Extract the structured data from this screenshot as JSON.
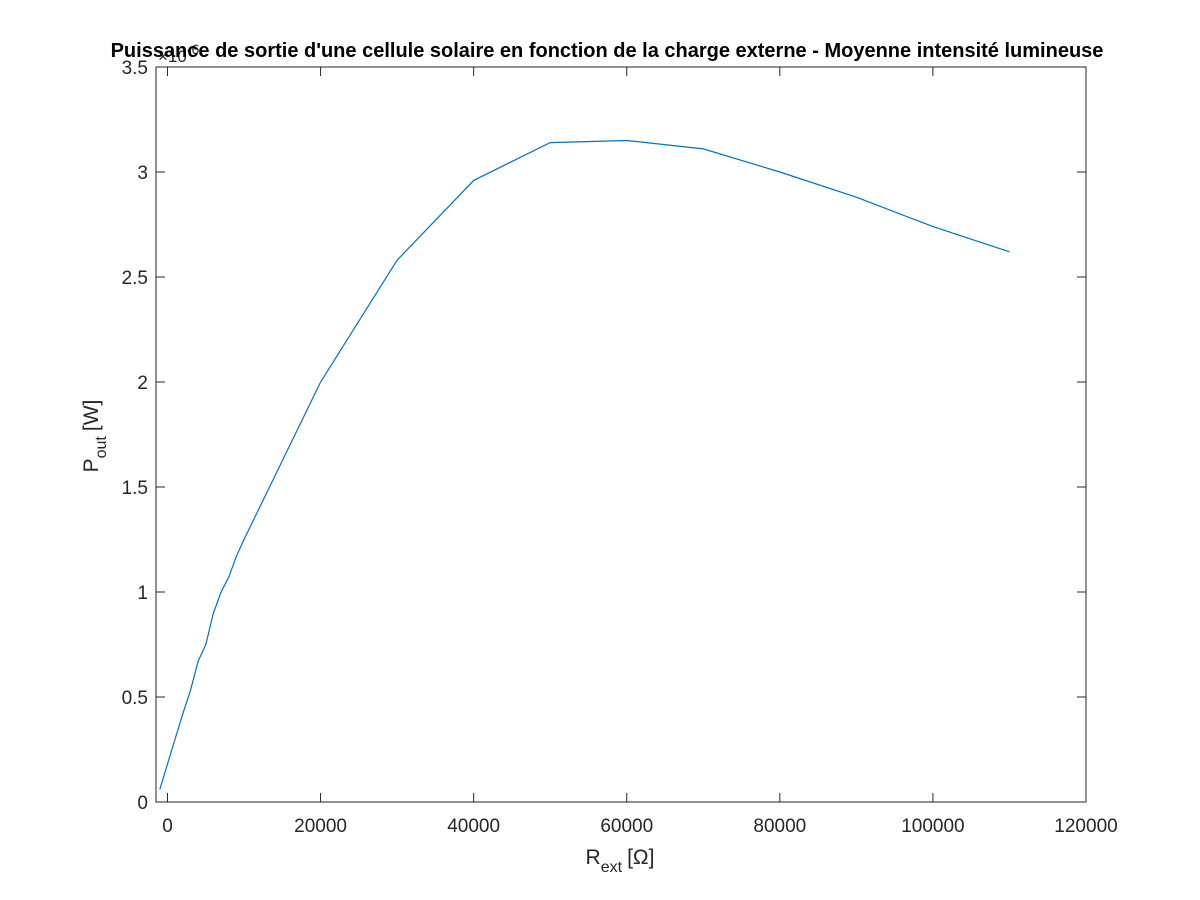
{
  "chart_data": {
    "type": "line",
    "title": "Puissance de sortie d'une cellule solaire en fonction de la charge externe - Moyenne intensité lumineuse",
    "xlabel": {
      "main": "R",
      "sub": "ext",
      "unit": "[Ω]"
    },
    "ylabel": {
      "main": "P",
      "sub": "out",
      "unit": "[W]"
    },
    "y_exponent": {
      "prefix": "×10",
      "power": "-6"
    },
    "xlim": [
      -1500,
      120000
    ],
    "ylim": [
      0,
      3.5
    ],
    "x_ticks": [
      0,
      20000,
      40000,
      60000,
      80000,
      100000,
      120000
    ],
    "x_tick_labels": [
      "0",
      "20000",
      "40000",
      "60000",
      "80000",
      "100000",
      "120000"
    ],
    "y_ticks": [
      0,
      0.5,
      1,
      1.5,
      2,
      2.5,
      3,
      3.5
    ],
    "y_tick_labels": [
      "0",
      "0.5",
      "1",
      "1.5",
      "2",
      "2.5",
      "3",
      "3.5"
    ],
    "grid": false,
    "series": [
      {
        "color": "#0072bd",
        "x": [
          -1000,
          1000,
          2000,
          3000,
          4000,
          5000,
          6000,
          7000,
          8000,
          9000,
          10000,
          20000,
          30000,
          40000,
          50000,
          60000,
          70000,
          80000,
          90000,
          100000,
          110000
        ],
        "y": [
          0.06,
          0.3,
          0.42,
          0.53,
          0.67,
          0.75,
          0.9,
          1.0,
          1.07,
          1.17,
          1.25,
          2.0,
          2.58,
          2.96,
          3.14,
          3.15,
          3.11,
          3.0,
          2.88,
          2.74,
          2.62
        ]
      }
    ]
  }
}
